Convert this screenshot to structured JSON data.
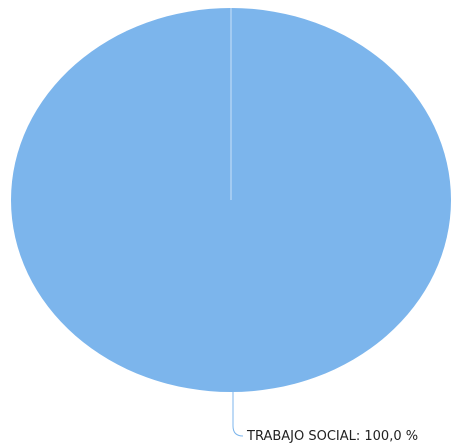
{
  "chart_data": {
    "type": "pie",
    "title": "",
    "legend": "none",
    "slices": [
      {
        "label": "TRABAJO SOCIAL",
        "value": 100.0,
        "label_text": "TRABAJO SOCIAL: 100,0 %",
        "color": "#7cb5ec"
      }
    ]
  }
}
